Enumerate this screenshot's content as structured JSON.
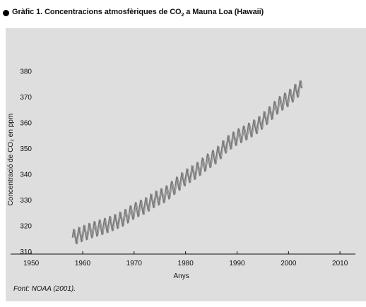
{
  "header": {
    "title_prefix": "Gràfic 1. Concentracions atmosfèriques de CO",
    "title_sub": "2",
    "title_suffix": " a Mauna Loa (Hawaii)"
  },
  "source_note": "Font: NOAA (2001).",
  "colors": {
    "panel": "#dedede",
    "line": "#7a7a7a",
    "axis": "#111111"
  },
  "chart_data": {
    "type": "line",
    "title": "Gràfic 1. Concentracions atmosfèriques de CO2 a Mauna Loa (Hawaii)",
    "xlabel": "Anys",
    "ylabel": "Concentració de CO₂ en ppm",
    "xlim": [
      1946,
      2013
    ],
    "ylim": [
      310,
      382
    ],
    "x_ticks": [
      1950,
      1960,
      1970,
      1980,
      1990,
      2000,
      2010
    ],
    "y_ticks": [
      310,
      320,
      330,
      340,
      350,
      360,
      370,
      380
    ],
    "grid": false,
    "seasonal_amplitude_ppm": 6,
    "series": [
      {
        "x": [
          1958,
          1960,
          1962,
          1964,
          1966,
          1968,
          1970,
          1972,
          1974,
          1976,
          1978,
          1980,
          1982,
          1984,
          1986,
          1988,
          1990,
          1992,
          1994,
          1996,
          1998,
          2000,
          2002
        ],
        "values": [
          315.3,
          316.9,
          318.4,
          319.6,
          321.1,
          322.9,
          325.7,
          327.5,
          330.2,
          332.0,
          335.4,
          338.7,
          341.1,
          344.4,
          347.2,
          351.6,
          354.3,
          356.4,
          358.9,
          362.6,
          366.7,
          369.4,
          373.2
        ]
      }
    ]
  }
}
